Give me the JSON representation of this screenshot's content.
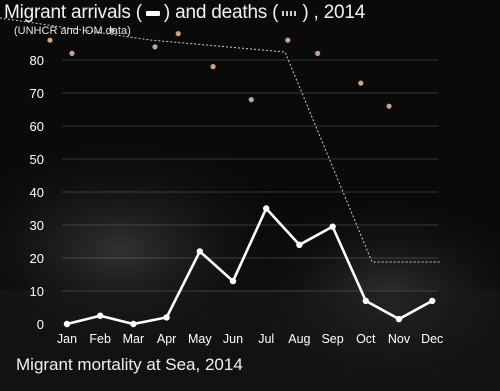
{
  "header": {
    "title_part1": "Migrant arrivals (",
    "title_part2": ") and deaths (",
    "title_part3": ") , 2014",
    "source": "(UNHCR and IOM data)"
  },
  "footer": {
    "caption": "Migrant mortality at Sea, 2014"
  },
  "colors": {
    "background": "#0a0a0a",
    "arrivals_line": "#ffffff",
    "deaths_dots": "#c9a48a",
    "grid": "#8a8a8a"
  },
  "chart_data": {
    "type": "line",
    "categories": [
      "Jan",
      "Feb",
      "Mar",
      "Apr",
      "May",
      "Jun",
      "Jul",
      "Aug",
      "Sep",
      "Oct",
      "Nov",
      "Dec"
    ],
    "series": [
      {
        "name": "",
        "style": "solid line with markers",
        "values": [
          0,
          2.5,
          0,
          2,
          22,
          13,
          35,
          24,
          29.5,
          7,
          1.5,
          7
        ]
      },
      {
        "name": "",
        "style": "dots",
        "values": [
          86,
          82,
          89,
          84,
          88,
          78,
          68,
          86,
          82,
          73,
          66,
          null
        ]
      }
    ],
    "y_ticks": [
      "0",
      "10",
      "20",
      "30",
      "40",
      "50",
      "60",
      "70",
      "80"
    ],
    "ylim": [
      0,
      89
    ],
    "grid": "horizontal"
  }
}
